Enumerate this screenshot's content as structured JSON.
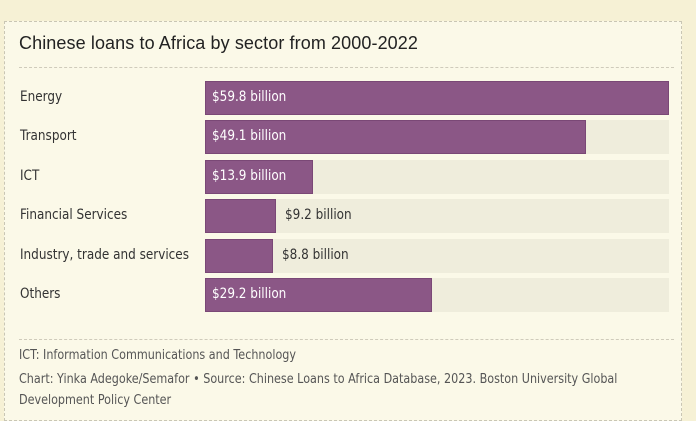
{
  "chart_data": {
    "type": "bar",
    "orientation": "horizontal",
    "title": "Chinese loans to Africa by sector from 2000-2022",
    "categories": [
      "Energy",
      "Transport",
      "ICT",
      "Financial Services",
      "Industry, trade and services",
      "Others"
    ],
    "values": [
      59.8,
      49.1,
      13.9,
      9.2,
      8.8,
      29.2
    ],
    "data_labels": [
      "$59.8 billion",
      "$49.1 billion",
      "$13.9 billion",
      "$9.2 billion",
      "$8.8 billion",
      "$29.2 billion"
    ],
    "unit": "billion USD",
    "xlim": [
      0,
      59.8
    ],
    "xlabel": "",
    "ylabel": "",
    "grid": false,
    "legend": "none",
    "colors": {
      "bar": "#8b5786",
      "track": "#efeddc"
    }
  },
  "footnote": "ICT: Information Communications and Technology",
  "credit_line1": "Chart: Yinka Adegoke/Semafor • Source: Chinese Loans to Africa Database, 2023. Boston University Global",
  "credit_line2": "Development Policy Center"
}
